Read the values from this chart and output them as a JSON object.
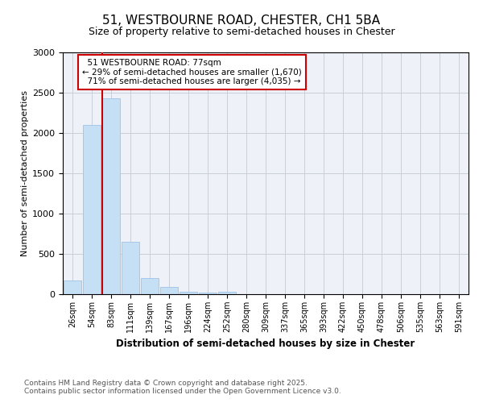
{
  "title_line1": "51, WESTBOURNE ROAD, CHESTER, CH1 5BA",
  "title_line2": "Size of property relative to semi-detached houses in Chester",
  "categories": [
    "26sqm",
    "54sqm",
    "83sqm",
    "111sqm",
    "139sqm",
    "167sqm",
    "196sqm",
    "224sqm",
    "252sqm",
    "280sqm",
    "309sqm",
    "337sqm",
    "365sqm",
    "393sqm",
    "422sqm",
    "450sqm",
    "478sqm",
    "506sqm",
    "535sqm",
    "563sqm",
    "591sqm"
  ],
  "values": [
    175,
    2100,
    2430,
    650,
    200,
    90,
    35,
    20,
    30,
    0,
    0,
    0,
    0,
    0,
    0,
    0,
    0,
    0,
    0,
    0,
    0
  ],
  "bar_color": "#c5dff5",
  "bar_edge_color": "#9dc4e8",
  "ylabel": "Number of semi-detached properties",
  "xlabel": "Distribution of semi-detached houses by size in Chester",
  "ylim": [
    0,
    3000
  ],
  "yticks": [
    0,
    500,
    1000,
    1500,
    2000,
    2500,
    3000
  ],
  "property_label": "51 WESTBOURNE ROAD: 77sqm",
  "pct_smaller": 29,
  "pct_larger": 71,
  "n_smaller": 1670,
  "n_larger": 4035,
  "vline_bar_index": 2,
  "annotation_box_color": "#cc0000",
  "footer_line1": "Contains HM Land Registry data © Crown copyright and database right 2025.",
  "footer_line2": "Contains public sector information licensed under the Open Government Licence v3.0.",
  "bg_color": "#eef2f8",
  "grid_color": "#c8cfd8"
}
